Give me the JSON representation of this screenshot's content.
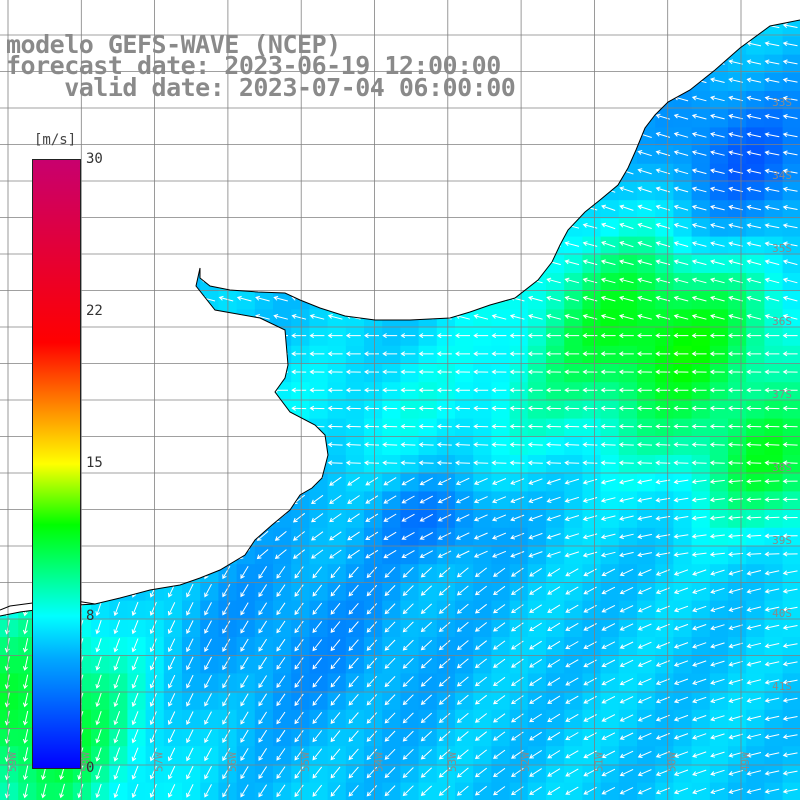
{
  "header": {
    "model": "modelo GEFS-WAVE (NCEP)",
    "forecast": "forecast date: 2023-06-19 12:00:00",
    "valid": "    valid date: 2023-07-04 06:00:00"
  },
  "colorbar": {
    "units": "[m/s]",
    "ticks": [
      "30",
      "22",
      "15",
      "8",
      "0"
    ],
    "tick_values": [
      30,
      22,
      15,
      8,
      0
    ],
    "colors": [
      "#0000ff",
      "#00a8ff",
      "#00ffff",
      "#00ff00",
      "#ffff00",
      "#ff8000",
      "#ff0000",
      "#c8006e"
    ]
  },
  "map": {
    "lat_labels": [
      "33S",
      "34S",
      "35S",
      "36S",
      "37S",
      "38S",
      "39S",
      "40S",
      "41S"
    ],
    "lon_labels": [
      "59W",
      "58W",
      "57W",
      "56W",
      "55W",
      "54W",
      "53W",
      "52W",
      "51W",
      "50W",
      "49W"
    ],
    "land_color": "#ffffff",
    "grid_color": "#808080",
    "arrow_color": "#ffffff"
  }
}
